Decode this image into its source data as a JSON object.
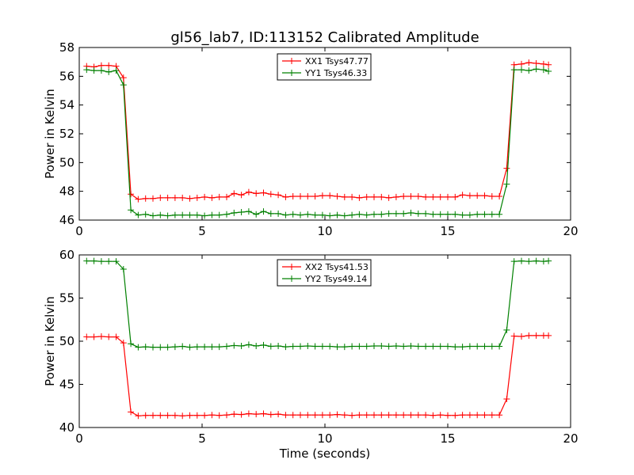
{
  "figure": {
    "title": "gl56_lab7, ID:113152 Calibrated Amplitude",
    "xlabel": "Time (seconds)"
  },
  "chart_data": [
    {
      "type": "line",
      "title": "gl56_lab7, ID:113152 Calibrated Amplitude",
      "xlabel": "",
      "ylabel": "Power in Kelvin",
      "xlim": [
        0,
        20
      ],
      "ylim": [
        46,
        58
      ],
      "xticks": [
        0,
        5,
        10,
        15,
        20
      ],
      "yticks": [
        46,
        48,
        50,
        52,
        54,
        56,
        58
      ],
      "grid": false,
      "legend_position": "top-center",
      "x": [
        0.3,
        0.6,
        0.9,
        1.2,
        1.5,
        1.8,
        2.1,
        2.4,
        2.7,
        3.0,
        3.3,
        3.6,
        3.9,
        4.2,
        4.5,
        4.8,
        5.1,
        5.4,
        5.7,
        6.0,
        6.3,
        6.6,
        6.9,
        7.2,
        7.5,
        7.8,
        8.1,
        8.4,
        8.7,
        9.0,
        9.3,
        9.6,
        9.9,
        10.2,
        10.5,
        10.8,
        11.1,
        11.4,
        11.7,
        12.0,
        12.3,
        12.6,
        12.9,
        13.2,
        13.5,
        13.8,
        14.1,
        14.4,
        14.7,
        15.0,
        15.3,
        15.6,
        15.9,
        16.2,
        16.5,
        16.8,
        17.1,
        17.4,
        17.7,
        18.0,
        18.3,
        18.6,
        18.9,
        19.1
      ],
      "series": [
        {
          "name": "XX1 Tsys47.77",
          "color": "#ff0000",
          "values": [
            56.7,
            56.65,
            56.75,
            56.75,
            56.7,
            55.9,
            47.8,
            47.45,
            47.5,
            47.5,
            47.55,
            47.55,
            47.55,
            47.55,
            47.5,
            47.55,
            47.6,
            47.55,
            47.6,
            47.6,
            47.85,
            47.75,
            47.95,
            47.85,
            47.9,
            47.8,
            47.75,
            47.6,
            47.65,
            47.65,
            47.65,
            47.65,
            47.7,
            47.7,
            47.65,
            47.6,
            47.6,
            47.55,
            47.6,
            47.6,
            47.6,
            47.55,
            47.6,
            47.65,
            47.65,
            47.65,
            47.6,
            47.6,
            47.6,
            47.6,
            47.6,
            47.75,
            47.7,
            47.7,
            47.7,
            47.65,
            47.65,
            49.6,
            56.8,
            56.85,
            56.95,
            56.9,
            56.85,
            56.8
          ]
        },
        {
          "name": "YY1 Tsys46.33",
          "color": "#008000",
          "values": [
            56.45,
            56.4,
            56.4,
            56.3,
            56.4,
            55.4,
            46.7,
            46.35,
            46.4,
            46.3,
            46.35,
            46.3,
            46.35,
            46.35,
            46.35,
            46.35,
            46.3,
            46.35,
            46.35,
            46.4,
            46.5,
            46.55,
            46.6,
            46.4,
            46.6,
            46.45,
            46.45,
            46.35,
            46.4,
            46.35,
            46.4,
            46.35,
            46.35,
            46.3,
            46.35,
            46.3,
            46.35,
            46.4,
            46.35,
            46.4,
            46.4,
            46.45,
            46.45,
            46.45,
            46.5,
            46.45,
            46.45,
            46.4,
            46.4,
            46.4,
            46.4,
            46.35,
            46.35,
            46.4,
            46.4,
            46.4,
            46.4,
            48.5,
            56.45,
            56.45,
            56.4,
            56.5,
            56.45,
            56.35
          ]
        }
      ]
    },
    {
      "type": "line",
      "title": "",
      "xlabel": "Time (seconds)",
      "ylabel": "Power in Kelvin",
      "xlim": [
        0,
        20
      ],
      "ylim": [
        40,
        60
      ],
      "xticks": [
        0,
        5,
        10,
        15,
        20
      ],
      "yticks": [
        40,
        45,
        50,
        55,
        60
      ],
      "grid": false,
      "legend_position": "top-center",
      "x": [
        0.3,
        0.6,
        0.9,
        1.2,
        1.5,
        1.8,
        2.1,
        2.4,
        2.7,
        3.0,
        3.3,
        3.6,
        3.9,
        4.2,
        4.5,
        4.8,
        5.1,
        5.4,
        5.7,
        6.0,
        6.3,
        6.6,
        6.9,
        7.2,
        7.5,
        7.8,
        8.1,
        8.4,
        8.7,
        9.0,
        9.3,
        9.6,
        9.9,
        10.2,
        10.5,
        10.8,
        11.1,
        11.4,
        11.7,
        12.0,
        12.3,
        12.6,
        12.9,
        13.2,
        13.5,
        13.8,
        14.1,
        14.4,
        14.7,
        15.0,
        15.3,
        15.6,
        15.9,
        16.2,
        16.5,
        16.8,
        17.1,
        17.4,
        17.7,
        18.0,
        18.3,
        18.6,
        18.9,
        19.1
      ],
      "series": [
        {
          "name": "XX2 Tsys41.53",
          "color": "#ff0000",
          "values": [
            50.5,
            50.5,
            50.55,
            50.5,
            50.5,
            49.8,
            41.8,
            41.35,
            41.4,
            41.4,
            41.4,
            41.4,
            41.4,
            41.35,
            41.4,
            41.4,
            41.4,
            41.45,
            41.4,
            41.45,
            41.55,
            41.5,
            41.6,
            41.55,
            41.6,
            41.5,
            41.55,
            41.45,
            41.45,
            41.45,
            41.45,
            41.45,
            41.45,
            41.45,
            41.5,
            41.45,
            41.4,
            41.45,
            41.45,
            41.45,
            41.45,
            41.45,
            41.45,
            41.45,
            41.45,
            41.45,
            41.45,
            41.4,
            41.45,
            41.4,
            41.4,
            41.45,
            41.45,
            41.45,
            41.45,
            41.45,
            41.45,
            43.3,
            50.6,
            50.55,
            50.65,
            50.65,
            50.65,
            50.65
          ]
        },
        {
          "name": "YY2 Tsys49.14",
          "color": "#008000",
          "values": [
            59.3,
            59.3,
            59.25,
            59.25,
            59.25,
            58.35,
            49.7,
            49.3,
            49.35,
            49.3,
            49.3,
            49.3,
            49.35,
            49.4,
            49.3,
            49.35,
            49.35,
            49.35,
            49.35,
            49.4,
            49.5,
            49.45,
            49.6,
            49.45,
            49.55,
            49.4,
            49.45,
            49.35,
            49.4,
            49.4,
            49.45,
            49.4,
            49.4,
            49.4,
            49.35,
            49.35,
            49.4,
            49.4,
            49.4,
            49.45,
            49.45,
            49.4,
            49.45,
            49.4,
            49.45,
            49.4,
            49.4,
            49.4,
            49.4,
            49.4,
            49.35,
            49.35,
            49.4,
            49.4,
            49.4,
            49.4,
            49.4,
            51.3,
            59.25,
            59.3,
            59.25,
            59.3,
            59.25,
            59.3
          ]
        }
      ]
    }
  ]
}
